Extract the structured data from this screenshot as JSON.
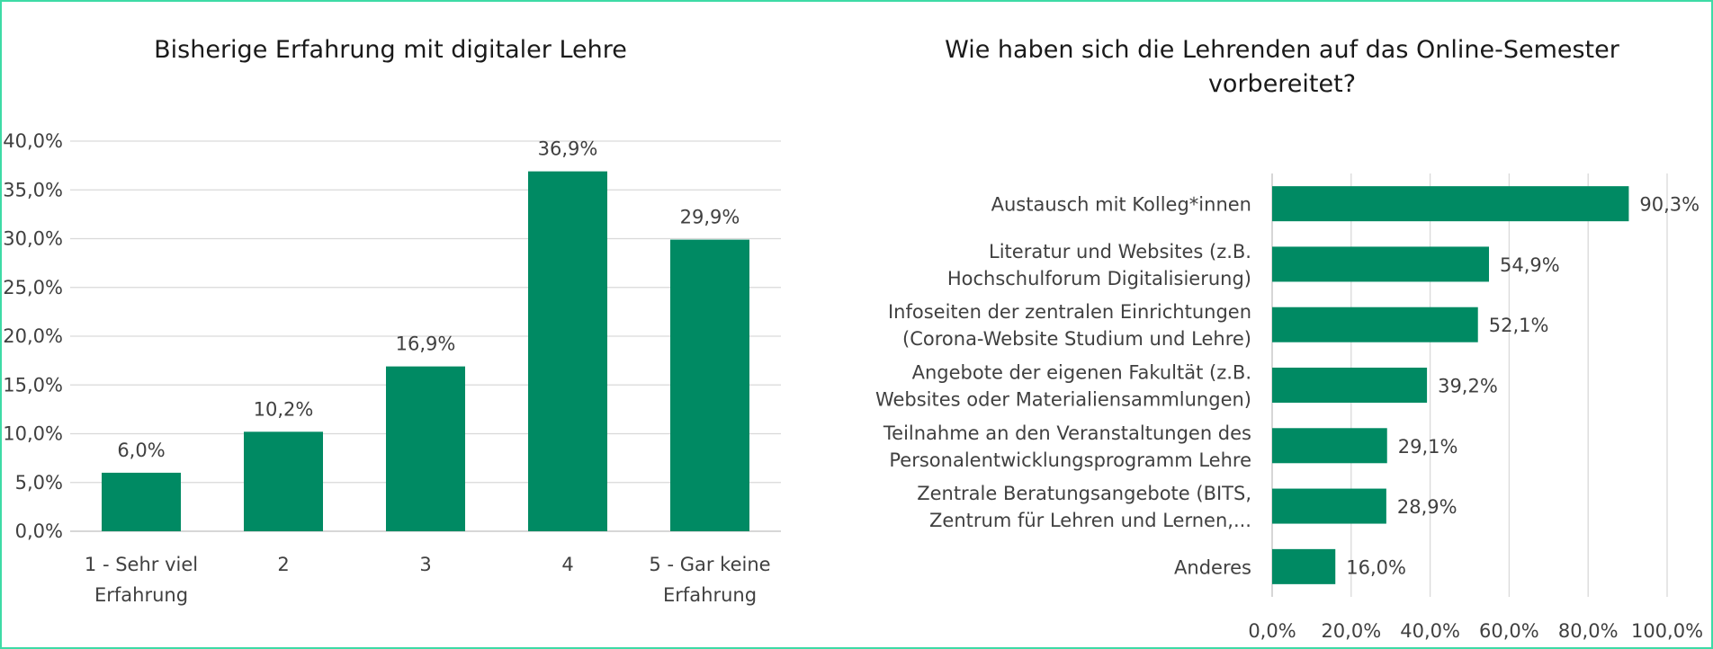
{
  "chart_data": [
    {
      "type": "bar",
      "title": "Bisherige Erfahrung mit digitaler Lehre",
      "categories": [
        [
          "1 - Sehr viel",
          "Erfahrung"
        ],
        [
          "2"
        ],
        [
          "3"
        ],
        [
          "4"
        ],
        [
          "5 - Gar keine",
          "Erfahrung"
        ]
      ],
      "values": [
        6.0,
        10.2,
        16.9,
        36.9,
        29.9
      ],
      "value_labels": [
        "6,0%",
        "10,2%",
        "16,9%",
        "36,9%",
        "29,9%"
      ],
      "ylim": [
        0,
        40
      ],
      "yticks": [
        "0,0%",
        "5,0%",
        "10,0%",
        "15,0%",
        "20,0%",
        "25,0%",
        "30,0%",
        "35,0%",
        "40,0%"
      ],
      "grid": true,
      "color": "#008a63"
    },
    {
      "type": "bar",
      "orientation": "horizontal",
      "title": [
        "Wie haben sich die Lehrenden auf das Online-Semester",
        "vorbereitet?"
      ],
      "categories": [
        [
          "Austausch mit Kolleg*innen"
        ],
        [
          "Literatur und Websites (z.B.",
          "Hochschulforum Digitalisierung)"
        ],
        [
          "Infoseiten der zentralen Einrichtungen",
          "(Corona-Website Studium und Lehre)"
        ],
        [
          "Angebote der eigenen Fakultät (z.B.",
          "Websites oder Materialiensammlungen)"
        ],
        [
          "Teilnahme an den Veranstaltungen des",
          "Personalentwicklungsprogramm Lehre"
        ],
        [
          "Zentrale Beratungsangebote (BITS,",
          "Zentrum für Lehren und Lernen,..."
        ],
        [
          "Anderes"
        ]
      ],
      "values": [
        90.3,
        54.9,
        52.1,
        39.2,
        29.1,
        28.9,
        16.0
      ],
      "value_labels": [
        "90,3%",
        "54,9%",
        "52,1%",
        "39,2%",
        "29,1%",
        "28,9%",
        "16,0%"
      ],
      "xlim": [
        0,
        100
      ],
      "xticks": [
        "0,0%",
        "20,0%",
        "40,0%",
        "60,0%",
        "80,0%",
        "100,0%"
      ],
      "grid": true,
      "color": "#008a63"
    }
  ]
}
